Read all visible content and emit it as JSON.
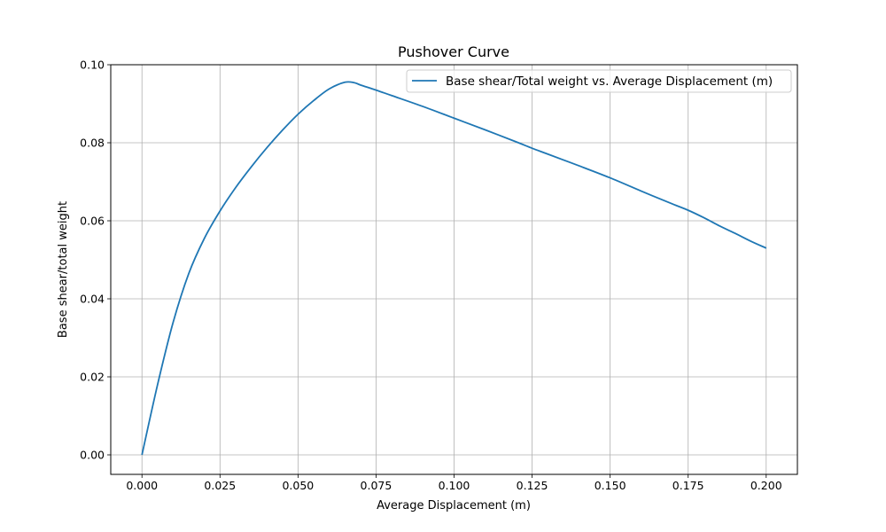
{
  "chart_data": {
    "type": "line",
    "title": "Pushover Curve",
    "xlabel": "Average Displacement (m)",
    "ylabel": "Base shear/total weight",
    "xlim": [
      -0.01,
      0.21
    ],
    "ylim": [
      -0.005,
      0.1
    ],
    "xticks": [
      0.0,
      0.025,
      0.05,
      0.075,
      0.1,
      0.125,
      0.15,
      0.175,
      0.2
    ],
    "xtick_labels": [
      "0.000",
      "0.025",
      "0.050",
      "0.075",
      "0.100",
      "0.125",
      "0.150",
      "0.175",
      "0.200"
    ],
    "yticks": [
      0.0,
      0.02,
      0.04,
      0.06,
      0.08,
      0.1
    ],
    "ytick_labels": [
      "0.00",
      "0.02",
      "0.04",
      "0.06",
      "0.08",
      "0.10"
    ],
    "grid": true,
    "legend_position": "top-right",
    "series": [
      {
        "name": "Base shear/Total weight vs. Average Displacement (m)",
        "color": "#1f77b4",
        "x": [
          0.0,
          0.005,
          0.01,
          0.015,
          0.02,
          0.025,
          0.03,
          0.035,
          0.04,
          0.045,
          0.05,
          0.055,
          0.06,
          0.065,
          0.068,
          0.07,
          0.075,
          0.08,
          0.09,
          0.1,
          0.11,
          0.12,
          0.125,
          0.13,
          0.14,
          0.15,
          0.16,
          0.17,
          0.175,
          0.18,
          0.185,
          0.19,
          0.195,
          0.2
        ],
        "y": [
          0.0,
          0.018,
          0.034,
          0.0465,
          0.0555,
          0.0625,
          0.0685,
          0.0738,
          0.0787,
          0.0832,
          0.0873,
          0.0908,
          0.0938,
          0.0955,
          0.0954,
          0.0948,
          0.0935,
          0.0921,
          0.0893,
          0.0863,
          0.0833,
          0.0802,
          0.0786,
          0.0771,
          0.0741,
          0.071,
          0.0676,
          0.0643,
          0.0627,
          0.0608,
          0.0587,
          0.0568,
          0.0548,
          0.053
        ]
      }
    ]
  }
}
